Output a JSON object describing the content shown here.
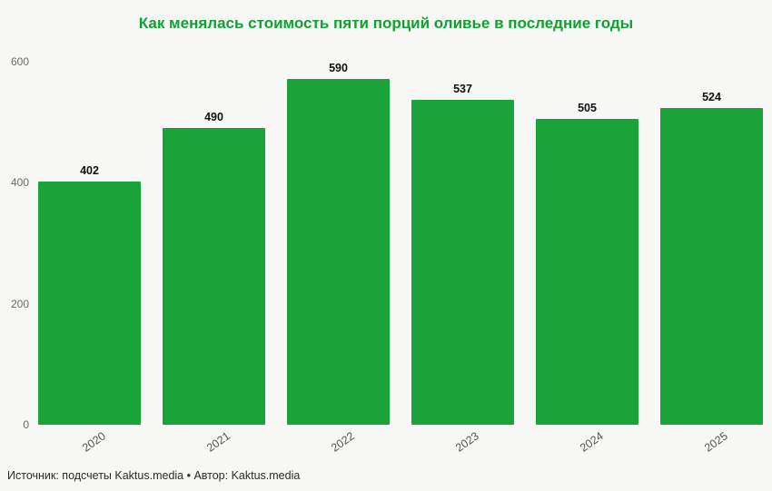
{
  "chart_data": {
    "type": "bar",
    "title": "Как менялась стоимость пяти порций оливье в последние годы",
    "categories": [
      "2020",
      "2021",
      "2022",
      "2023",
      "2024",
      "2025"
    ],
    "values": [
      402,
      490,
      590,
      537,
      505,
      524
    ],
    "yticks": [
      0,
      200,
      400,
      600
    ],
    "ylim": [
      0,
      600
    ],
    "xlabel": "",
    "ylabel": "",
    "grid": false,
    "legend": false,
    "bar_color": "#1aa33a",
    "title_color": "#12a032",
    "background_color": "#f7f7f5"
  },
  "footer": {
    "text": "Источник: подсчеты Kaktus.media • Автор: Kaktus.media"
  }
}
